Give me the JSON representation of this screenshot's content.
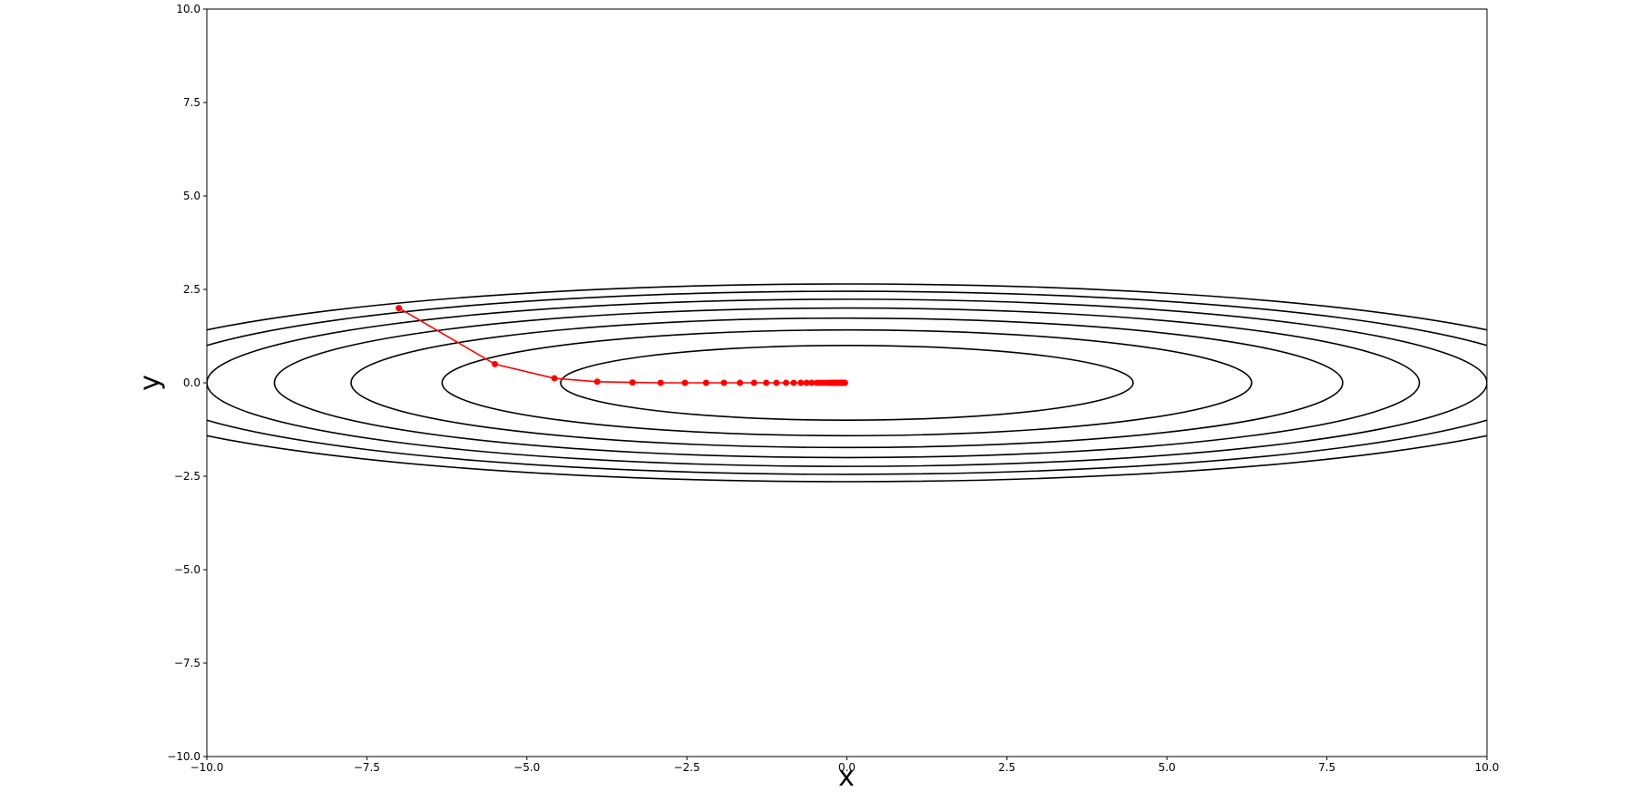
{
  "chart_data": {
    "type": "contour",
    "xlabel": "x",
    "ylabel": "y",
    "xlim": [
      -10,
      10
    ],
    "ylim": [
      -10,
      10
    ],
    "xticks": [
      {
        "value": -10,
        "label": "−10.0"
      },
      {
        "value": -7.5,
        "label": "−7.5"
      },
      {
        "value": -5,
        "label": "−5.0"
      },
      {
        "value": -2.5,
        "label": "−2.5"
      },
      {
        "value": 0,
        "label": "0.0"
      },
      {
        "value": 2.5,
        "label": "2.5"
      },
      {
        "value": 5,
        "label": "5.0"
      },
      {
        "value": 7.5,
        "label": "7.5"
      },
      {
        "value": 10,
        "label": "10.0"
      }
    ],
    "yticks": [
      {
        "value": -10,
        "label": "−10.0"
      },
      {
        "value": -7.5,
        "label": "−7.5"
      },
      {
        "value": -5,
        "label": "−5.0"
      },
      {
        "value": -2.5,
        "label": "−2.5"
      },
      {
        "value": 0,
        "label": "0.0"
      },
      {
        "value": 2.5,
        "label": "2.5"
      },
      {
        "value": 5,
        "label": "5.0"
      },
      {
        "value": 7.5,
        "label": "7.5"
      },
      {
        "value": 10,
        "label": "10.0"
      }
    ],
    "contours": {
      "color": "#000000",
      "levels": [
        1,
        2,
        3,
        4,
        5,
        6,
        7
      ],
      "x_weight": 0.05,
      "y_weight": 1
    },
    "path": {
      "color": "#ff0000",
      "x": [
        -7,
        -5.5,
        -4.57,
        -3.9,
        -3.35,
        -2.91,
        -2.53,
        -2.2,
        -1.92,
        -1.67,
        -1.45,
        -1.26,
        -1.1,
        -0.95,
        -0.83,
        -0.72,
        -0.63,
        -0.55,
        -0.47,
        -0.41,
        -0.36,
        -0.31,
        -0.27,
        -0.24,
        -0.21,
        -0.18,
        -0.16,
        -0.14,
        -0.12,
        -0.1,
        -0.09,
        -0.08,
        -0.07,
        -0.06,
        -0.05,
        -0.04,
        -0.03
      ],
      "y": [
        2,
        0.5,
        0.12,
        0.03,
        0.01,
        0,
        0,
        0,
        0,
        0,
        0,
        0,
        0,
        0,
        0,
        0,
        0,
        0,
        0,
        0,
        0,
        0,
        0,
        0,
        0,
        0,
        0,
        0,
        0,
        0,
        0,
        0,
        0,
        0,
        0,
        0,
        0
      ]
    }
  }
}
